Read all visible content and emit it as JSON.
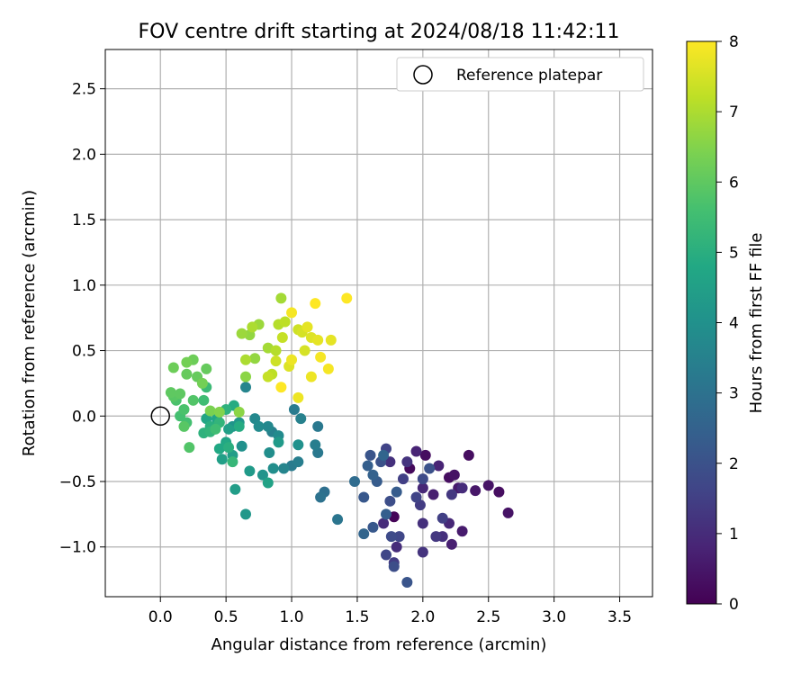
{
  "chart_data": {
    "type": "scatter",
    "title": "FOV centre drift starting at 2024/08/18 11:42:11",
    "xlabel": "Angular distance from reference (arcmin)",
    "ylabel": "Rotation from reference (arcmin)",
    "xlim": [
      -0.42,
      3.75
    ],
    "ylim": [
      -1.38,
      2.8
    ],
    "xticks": [
      0.0,
      0.5,
      1.0,
      1.5,
      2.0,
      2.5,
      3.0,
      3.5
    ],
    "xtick_labels": [
      "0.0",
      "0.5",
      "1.0",
      "1.5",
      "2.0",
      "2.5",
      "3.0",
      "3.5"
    ],
    "yticks": [
      -1.0,
      -0.5,
      0.0,
      0.5,
      1.0,
      1.5,
      2.0,
      2.5
    ],
    "ytick_labels": [
      "−1.0",
      "−0.5",
      "0.0",
      "0.5",
      "1.0",
      "1.5",
      "2.0",
      "2.5"
    ],
    "grid": true,
    "legend": {
      "position": "top-right",
      "entries": [
        "Reference platepar"
      ]
    },
    "reference_point": {
      "x": 0.0,
      "y": 0.0,
      "label": "Reference platepar"
    },
    "colorbar": {
      "label": "Hours from first FF file",
      "range": [
        0,
        8
      ],
      "ticks": [
        0,
        1,
        2,
        3,
        4,
        5,
        6,
        7,
        8
      ],
      "tick_labels": [
        "0",
        "1",
        "2",
        "3",
        "4",
        "5",
        "6",
        "7",
        "8"
      ],
      "colormap": "viridis"
    },
    "points": [
      {
        "x": 1.78,
        "y": -0.77,
        "c": 0.1
      },
      {
        "x": 1.9,
        "y": -0.4,
        "c": 0.2
      },
      {
        "x": 2.02,
        "y": -0.3,
        "c": 0.3
      },
      {
        "x": 2.2,
        "y": -0.47,
        "c": 0.3
      },
      {
        "x": 2.35,
        "y": -0.3,
        "c": 0.3
      },
      {
        "x": 2.24,
        "y": -0.45,
        "c": 0.4
      },
      {
        "x": 2.5,
        "y": -0.53,
        "c": 0.4
      },
      {
        "x": 2.65,
        "y": -0.74,
        "c": 0.4
      },
      {
        "x": 2.58,
        "y": -0.58,
        "c": 0.3
      },
      {
        "x": 2.4,
        "y": -0.57,
        "c": 0.5
      },
      {
        "x": 2.27,
        "y": -0.55,
        "c": 0.6
      },
      {
        "x": 2.3,
        "y": -0.88,
        "c": 0.6
      },
      {
        "x": 2.22,
        "y": -0.98,
        "c": 0.7
      },
      {
        "x": 2.08,
        "y": -0.6,
        "c": 0.7
      },
      {
        "x": 2.12,
        "y": -0.38,
        "c": 0.8
      },
      {
        "x": 1.95,
        "y": -0.27,
        "c": 0.8
      },
      {
        "x": 2.0,
        "y": -0.55,
        "c": 0.9
      },
      {
        "x": 2.2,
        "y": -0.82,
        "c": 0.9
      },
      {
        "x": 1.8,
        "y": -1.0,
        "c": 1.0
      },
      {
        "x": 1.7,
        "y": -0.82,
        "c": 1.0
      },
      {
        "x": 2.0,
        "y": -0.82,
        "c": 1.1
      },
      {
        "x": 2.15,
        "y": -0.92,
        "c": 1.1
      },
      {
        "x": 1.75,
        "y": -0.35,
        "c": 1.1
      },
      {
        "x": 2.0,
        "y": -1.04,
        "c": 1.2
      },
      {
        "x": 1.88,
        "y": -0.35,
        "c": 1.2
      },
      {
        "x": 2.22,
        "y": -0.6,
        "c": 1.3
      },
      {
        "x": 2.1,
        "y": -0.92,
        "c": 1.3
      },
      {
        "x": 1.98,
        "y": -0.68,
        "c": 1.4
      },
      {
        "x": 1.78,
        "y": -1.12,
        "c": 1.4
      },
      {
        "x": 2.3,
        "y": -0.55,
        "c": 1.0
      },
      {
        "x": 1.85,
        "y": -0.48,
        "c": 1.5
      },
      {
        "x": 2.15,
        "y": -0.78,
        "c": 1.5
      },
      {
        "x": 1.72,
        "y": -0.25,
        "c": 1.6
      },
      {
        "x": 1.95,
        "y": -0.62,
        "c": 1.6
      },
      {
        "x": 1.72,
        "y": -1.06,
        "c": 1.7
      },
      {
        "x": 1.82,
        "y": -0.92,
        "c": 1.7
      },
      {
        "x": 2.0,
        "y": -0.48,
        "c": 1.8
      },
      {
        "x": 1.76,
        "y": -0.92,
        "c": 1.8
      },
      {
        "x": 1.78,
        "y": -1.15,
        "c": 1.9
      },
      {
        "x": 1.75,
        "y": -0.65,
        "c": 1.9
      },
      {
        "x": 2.05,
        "y": -0.4,
        "c": 2.0
      },
      {
        "x": 1.68,
        "y": -0.35,
        "c": 2.0
      },
      {
        "x": 1.6,
        "y": -0.3,
        "c": 2.1
      },
      {
        "x": 1.88,
        "y": -1.27,
        "c": 2.1
      },
      {
        "x": 1.55,
        "y": -0.62,
        "c": 2.2
      },
      {
        "x": 1.62,
        "y": -0.85,
        "c": 2.2
      },
      {
        "x": 1.8,
        "y": -0.58,
        "c": 2.3
      },
      {
        "x": 1.65,
        "y": -0.5,
        "c": 2.3
      },
      {
        "x": 1.72,
        "y": -0.75,
        "c": 2.4
      },
      {
        "x": 1.58,
        "y": -0.38,
        "c": 2.4
      },
      {
        "x": 1.62,
        "y": -0.45,
        "c": 2.5
      },
      {
        "x": 1.7,
        "y": -0.3,
        "c": 2.6
      },
      {
        "x": 1.55,
        "y": -0.9,
        "c": 2.6
      },
      {
        "x": 1.48,
        "y": -0.5,
        "c": 2.8
      },
      {
        "x": 1.25,
        "y": -0.58,
        "c": 2.9
      },
      {
        "x": 1.22,
        "y": -0.62,
        "c": 3.0
      },
      {
        "x": 1.35,
        "y": -0.79,
        "c": 3.1
      },
      {
        "x": 1.2,
        "y": -0.08,
        "c": 3.2
      },
      {
        "x": 1.2,
        "y": -0.28,
        "c": 3.2
      },
      {
        "x": 1.02,
        "y": 0.05,
        "c": 3.3
      },
      {
        "x": 1.0,
        "y": -0.38,
        "c": 3.3
      },
      {
        "x": 1.18,
        "y": -0.22,
        "c": 3.4
      },
      {
        "x": 1.05,
        "y": -0.35,
        "c": 3.4
      },
      {
        "x": 0.85,
        "y": -0.12,
        "c": 3.5
      },
      {
        "x": 1.07,
        "y": -0.02,
        "c": 3.5
      },
      {
        "x": 0.94,
        "y": -0.4,
        "c": 3.6
      },
      {
        "x": 0.65,
        "y": 0.22,
        "c": 3.6
      },
      {
        "x": 0.82,
        "y": -0.08,
        "c": 3.7
      },
      {
        "x": 0.72,
        "y": -0.02,
        "c": 3.7
      },
      {
        "x": 0.9,
        "y": -0.15,
        "c": 3.8
      },
      {
        "x": 0.75,
        "y": -0.08,
        "c": 3.8
      },
      {
        "x": 0.86,
        "y": -0.4,
        "c": 3.9
      },
      {
        "x": 0.83,
        "y": -0.28,
        "c": 3.9
      },
      {
        "x": 1.05,
        "y": -0.22,
        "c": 4.0
      },
      {
        "x": 0.62,
        "y": -0.23,
        "c": 4.0
      },
      {
        "x": 0.78,
        "y": -0.45,
        "c": 4.1
      },
      {
        "x": 0.55,
        "y": -0.08,
        "c": 4.1
      },
      {
        "x": 0.6,
        "y": -0.05,
        "c": 4.2
      },
      {
        "x": 0.65,
        "y": -0.75,
        "c": 4.2
      },
      {
        "x": 0.68,
        "y": -0.42,
        "c": 4.3
      },
      {
        "x": 0.9,
        "y": -0.2,
        "c": 4.3
      },
      {
        "x": 0.55,
        "y": -0.3,
        "c": 4.4
      },
      {
        "x": 0.57,
        "y": -0.56,
        "c": 4.4
      },
      {
        "x": 0.52,
        "y": -0.1,
        "c": 4.5
      },
      {
        "x": 0.47,
        "y": -0.33,
        "c": 4.5
      },
      {
        "x": 0.82,
        "y": -0.51,
        "c": 4.6
      },
      {
        "x": 0.5,
        "y": -0.2,
        "c": 4.6
      },
      {
        "x": 0.43,
        "y": -0.02,
        "c": 4.7
      },
      {
        "x": 0.35,
        "y": -0.02,
        "c": 4.7
      },
      {
        "x": 0.5,
        "y": -0.22,
        "c": 4.8
      },
      {
        "x": 0.45,
        "y": -0.25,
        "c": 4.8
      },
      {
        "x": 0.56,
        "y": 0.08,
        "c": 4.9
      },
      {
        "x": 0.6,
        "y": -0.08,
        "c": 4.9
      },
      {
        "x": 0.38,
        "y": -0.08,
        "c": 5.0
      },
      {
        "x": 0.52,
        "y": -0.24,
        "c": 5.0
      },
      {
        "x": 0.33,
        "y": -0.13,
        "c": 5.1
      },
      {
        "x": 0.5,
        "y": 0.05,
        "c": 5.1
      },
      {
        "x": 0.38,
        "y": -0.12,
        "c": 5.2
      },
      {
        "x": 0.45,
        "y": -0.05,
        "c": 5.2
      },
      {
        "x": 0.55,
        "y": -0.35,
        "c": 5.3
      },
      {
        "x": 0.35,
        "y": 0.22,
        "c": 5.4
      },
      {
        "x": 0.42,
        "y": -0.1,
        "c": 5.5
      },
      {
        "x": 0.33,
        "y": 0.12,
        "c": 5.5
      },
      {
        "x": 0.2,
        "y": -0.05,
        "c": 5.6
      },
      {
        "x": 0.15,
        "y": 0.0,
        "c": 5.6
      },
      {
        "x": 0.12,
        "y": 0.12,
        "c": 5.7
      },
      {
        "x": 0.18,
        "y": 0.05,
        "c": 5.7
      },
      {
        "x": 0.22,
        "y": -0.24,
        "c": 5.8
      },
      {
        "x": 0.25,
        "y": 0.12,
        "c": 5.8
      },
      {
        "x": 0.1,
        "y": 0.15,
        "c": 5.9
      },
      {
        "x": 0.18,
        "y": -0.08,
        "c": 5.9
      },
      {
        "x": 0.08,
        "y": 0.18,
        "c": 6.0
      },
      {
        "x": 0.15,
        "y": 0.17,
        "c": 6.0
      },
      {
        "x": 0.28,
        "y": 0.3,
        "c": 6.1
      },
      {
        "x": 0.35,
        "y": 0.36,
        "c": 6.1
      },
      {
        "x": 0.2,
        "y": 0.32,
        "c": 6.1
      },
      {
        "x": 0.1,
        "y": 0.37,
        "c": 6.2
      },
      {
        "x": 0.25,
        "y": 0.43,
        "c": 6.2
      },
      {
        "x": 0.2,
        "y": 0.41,
        "c": 6.3
      },
      {
        "x": 0.32,
        "y": 0.25,
        "c": 6.3
      },
      {
        "x": 0.38,
        "y": 0.04,
        "c": 6.4
      },
      {
        "x": 0.45,
        "y": 0.03,
        "c": 6.5
      },
      {
        "x": 0.6,
        "y": 0.03,
        "c": 6.6
      },
      {
        "x": 0.65,
        "y": 0.3,
        "c": 6.6
      },
      {
        "x": 0.72,
        "y": 0.44,
        "c": 6.7
      },
      {
        "x": 0.68,
        "y": 0.62,
        "c": 6.7
      },
      {
        "x": 0.62,
        "y": 0.63,
        "c": 6.8
      },
      {
        "x": 0.75,
        "y": 0.7,
        "c": 6.8
      },
      {
        "x": 0.82,
        "y": 0.52,
        "c": 6.9
      },
      {
        "x": 0.92,
        "y": 0.9,
        "c": 6.9
      },
      {
        "x": 0.65,
        "y": 0.43,
        "c": 7.0
      },
      {
        "x": 0.7,
        "y": 0.68,
        "c": 7.0
      },
      {
        "x": 0.88,
        "y": 0.5,
        "c": 7.1
      },
      {
        "x": 0.9,
        "y": 0.7,
        "c": 7.1
      },
      {
        "x": 0.95,
        "y": 0.72,
        "c": 7.2
      },
      {
        "x": 0.85,
        "y": 0.32,
        "c": 7.2
      },
      {
        "x": 0.82,
        "y": 0.3,
        "c": 7.3
      },
      {
        "x": 0.93,
        "y": 0.6,
        "c": 7.3
      },
      {
        "x": 0.88,
        "y": 0.42,
        "c": 7.4
      },
      {
        "x": 1.05,
        "y": 0.66,
        "c": 7.4
      },
      {
        "x": 1.1,
        "y": 0.5,
        "c": 7.5
      },
      {
        "x": 1.08,
        "y": 0.64,
        "c": 7.5
      },
      {
        "x": 0.98,
        "y": 0.38,
        "c": 7.6
      },
      {
        "x": 1.15,
        "y": 0.6,
        "c": 7.6
      },
      {
        "x": 1.12,
        "y": 0.68,
        "c": 7.7
      },
      {
        "x": 1.2,
        "y": 0.58,
        "c": 7.7
      },
      {
        "x": 1.05,
        "y": 0.14,
        "c": 7.8
      },
      {
        "x": 1.0,
        "y": 0.43,
        "c": 7.8
      },
      {
        "x": 1.15,
        "y": 0.3,
        "c": 7.8
      },
      {
        "x": 1.22,
        "y": 0.45,
        "c": 7.9
      },
      {
        "x": 1.28,
        "y": 0.36,
        "c": 7.9
      },
      {
        "x": 1.0,
        "y": 0.79,
        "c": 7.9
      },
      {
        "x": 1.18,
        "y": 0.86,
        "c": 8.0
      },
      {
        "x": 1.42,
        "y": 0.9,
        "c": 8.0
      },
      {
        "x": 0.92,
        "y": 0.22,
        "c": 8.0
      },
      {
        "x": 1.3,
        "y": 0.58,
        "c": 7.7
      }
    ]
  }
}
